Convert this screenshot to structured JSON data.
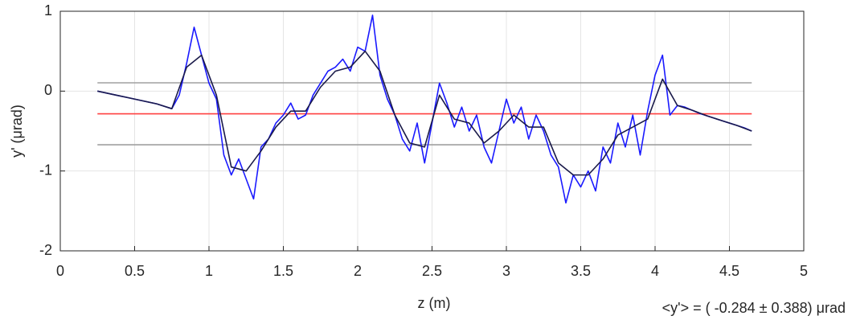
{
  "chart_data": {
    "type": "line",
    "xlabel": "z (m)",
    "ylabel": "y' (μrad)",
    "annotation": "<y'> = ( -0.284 ± 0.388) μrad",
    "xlim": [
      0,
      5
    ],
    "xticks": [
      0,
      0.5,
      1,
      1.5,
      2,
      2.5,
      3,
      3.5,
      4,
      4.5,
      5
    ],
    "ylim": [
      -2,
      1
    ],
    "yticks": [
      -2,
      -1,
      0,
      1
    ],
    "grid": true,
    "series": [
      {
        "color": "#a0a0a0",
        "x": [
          0.25,
          4.65
        ],
        "values": [
          0.104,
          0.104
        ]
      },
      {
        "color": "#a0a0a0",
        "x": [
          0.25,
          4.65
        ],
        "values": [
          -0.672,
          -0.672
        ]
      },
      {
        "color": "#ff4040",
        "x": [
          0.25,
          4.65
        ],
        "values": [
          -0.284,
          -0.284
        ]
      },
      {
        "color": "#1a1aff",
        "x": [
          0.25,
          0.3,
          0.35,
          0.4,
          0.45,
          0.5,
          0.55,
          0.6,
          0.65,
          0.7,
          0.75,
          0.8,
          0.85,
          0.9,
          0.95,
          1,
          1.05,
          1.1,
          1.15,
          1.2,
          1.25,
          1.3,
          1.35,
          1.4,
          1.45,
          1.5,
          1.55,
          1.6,
          1.65,
          1.7,
          1.75,
          1.8,
          1.85,
          1.9,
          1.95,
          2,
          2.05,
          2.1,
          2.15,
          2.2,
          2.25,
          2.3,
          2.35,
          2.4,
          2.45,
          2.5,
          2.55,
          2.6,
          2.65,
          2.7,
          2.75,
          2.8,
          2.85,
          2.9,
          2.95,
          3,
          3.05,
          3.1,
          3.15,
          3.2,
          3.25,
          3.3,
          3.35,
          3.4,
          3.45,
          3.5,
          3.55,
          3.6,
          3.65,
          3.7,
          3.75,
          3.8,
          3.85,
          3.9,
          3.95,
          4,
          4.05,
          4.1,
          4.15,
          4.2,
          4.25,
          4.3,
          4.35,
          4.4,
          4.45,
          4.5,
          4.55,
          4.6,
          4.65
        ],
        "values": [
          0,
          -0.02,
          -0.04,
          -0.06,
          -0.08,
          -0.1,
          -0.12,
          -0.14,
          -0.16,
          -0.19,
          -0.22,
          -0.05,
          0.35,
          0.8,
          0.45,
          0.1,
          -0.1,
          -0.8,
          -1.05,
          -0.85,
          -1.1,
          -1.35,
          -0.7,
          -0.6,
          -0.4,
          -0.3,
          -0.15,
          -0.35,
          -0.3,
          -0.05,
          0.1,
          0.25,
          0.3,
          0.4,
          0.25,
          0.55,
          0.5,
          0.95,
          0.2,
          -0.1,
          -0.3,
          -0.6,
          -0.75,
          -0.4,
          -0.9,
          -0.4,
          0.1,
          -0.15,
          -0.45,
          -0.2,
          -0.5,
          -0.3,
          -0.7,
          -0.9,
          -0.5,
          -0.1,
          -0.4,
          -0.2,
          -0.6,
          -0.3,
          -0.5,
          -0.8,
          -0.95,
          -1.4,
          -1.05,
          -1.2,
          -1,
          -1.25,
          -0.7,
          -0.9,
          -0.4,
          -0.7,
          -0.3,
          -0.8,
          -0.25,
          0.2,
          0.45,
          -0.3,
          -0.18,
          -0.2,
          -0.24,
          -0.28,
          -0.31,
          -0.34,
          -0.37,
          -0.4,
          -0.43,
          -0.46,
          -0.5
        ]
      },
      {
        "color": "#1a1a4a",
        "x": [
          0.25,
          0.35,
          0.45,
          0.55,
          0.65,
          0.75,
          0.85,
          0.95,
          1.05,
          1.15,
          1.25,
          1.35,
          1.45,
          1.55,
          1.65,
          1.75,
          1.85,
          1.95,
          2.05,
          2.15,
          2.25,
          2.35,
          2.45,
          2.55,
          2.65,
          2.75,
          2.85,
          2.95,
          3.05,
          3.15,
          3.25,
          3.35,
          3.45,
          3.55,
          3.65,
          3.75,
          3.85,
          3.95,
          4.05,
          4.15,
          4.25,
          4.35,
          4.45,
          4.55,
          4.65
        ],
        "values": [
          0,
          -0.04,
          -0.08,
          -0.12,
          -0.16,
          -0.22,
          0.3,
          0.45,
          -0.05,
          -0.95,
          -1,
          -0.75,
          -0.45,
          -0.25,
          -0.25,
          0.05,
          0.25,
          0.3,
          0.5,
          0.25,
          -0.3,
          -0.65,
          -0.7,
          -0.05,
          -0.35,
          -0.4,
          -0.65,
          -0.5,
          -0.3,
          -0.45,
          -0.45,
          -0.9,
          -1.05,
          -1.05,
          -0.85,
          -0.55,
          -0.45,
          -0.35,
          0.15,
          -0.18,
          -0.24,
          -0.31,
          -0.37,
          -0.43,
          -0.5
        ]
      }
    ]
  }
}
